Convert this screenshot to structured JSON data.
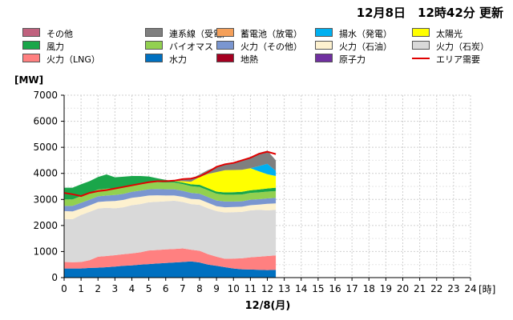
{
  "header": {
    "updated": "12月8日　12時42分 更新"
  },
  "legend": [
    {
      "key": "other",
      "label": "その他",
      "color": "#c0627e",
      "kind": "box"
    },
    {
      "key": "interconnect",
      "label": "連系線（受電）",
      "color": "#7f7f7f",
      "kind": "box"
    },
    {
      "key": "battery",
      "label": "蓄電池（放電）",
      "color": "#f5a05a",
      "kind": "box"
    },
    {
      "key": "pumped",
      "label": "揚水（発電）",
      "color": "#00b0f0",
      "kind": "box"
    },
    {
      "key": "solar",
      "label": "太陽光",
      "color": "#ffff00",
      "kind": "box"
    },
    {
      "key": "wind",
      "label": "風力",
      "color": "#1aa64a",
      "kind": "box"
    },
    {
      "key": "biomass",
      "label": "バイオマス",
      "color": "#92d050",
      "kind": "box"
    },
    {
      "key": "thermal_other",
      "label": "火力（その他）",
      "color": "#7a96d0",
      "kind": "box"
    },
    {
      "key": "oil",
      "label": "火力（石油）",
      "color": "#fdf1cf",
      "kind": "box"
    },
    {
      "key": "coal",
      "label": "火力（石炭）",
      "color": "#d9d9d9",
      "kind": "box"
    },
    {
      "key": "lng",
      "label": "火力（LNG）",
      "color": "#ff8080",
      "kind": "box"
    },
    {
      "key": "hydro",
      "label": "水力",
      "color": "#0070c0",
      "kind": "box"
    },
    {
      "key": "geothermal",
      "label": "地熱",
      "color": "#a50021",
      "kind": "box"
    },
    {
      "key": "nuclear",
      "label": "原子力",
      "color": "#7030a0",
      "kind": "box"
    },
    {
      "key": "demand",
      "label": "エリア需要",
      "color": "#e00000",
      "kind": "line"
    }
  ],
  "chart_data": {
    "type": "area",
    "title": "",
    "ylabel": "[MW]",
    "xlabel": "12/8(月)",
    "x_unit": "[時]",
    "ylim": [
      0,
      7000
    ],
    "yticks": [
      0,
      1000,
      2000,
      3000,
      4000,
      5000,
      6000,
      7000
    ],
    "xlim": [
      0,
      24
    ],
    "xticks": [
      "0",
      "1",
      "2",
      "3",
      "4",
      "5",
      "6",
      "7",
      "8",
      "9",
      "10",
      "11",
      "12",
      "13",
      "14",
      "15",
      "16",
      "17",
      "18",
      "19",
      "20",
      "21",
      "22",
      "23",
      "24"
    ],
    "x": [
      0,
      0.5,
      1,
      1.5,
      2,
      2.5,
      3,
      3.5,
      4,
      4.5,
      5,
      5.5,
      6,
      6.5,
      7,
      7.5,
      8,
      8.5,
      9,
      9.5,
      10,
      10.5,
      11,
      11.5,
      12,
      12.5
    ],
    "series": [
      {
        "key": "hydro",
        "name": "水力",
        "values": [
          350,
          350,
          350,
          370,
          380,
          400,
          420,
          450,
          470,
          500,
          520,
          540,
          560,
          580,
          600,
          620,
          580,
          500,
          450,
          400,
          350,
          320,
          310,
          300,
          290,
          300
        ]
      },
      {
        "key": "lng",
        "name": "火力（LNG）",
        "values": [
          250,
          240,
          250,
          300,
          420,
          430,
          440,
          450,
          460,
          470,
          520,
          520,
          520,
          520,
          520,
          450,
          450,
          400,
          350,
          320,
          380,
          420,
          470,
          500,
          540,
          550
        ]
      },
      {
        "key": "coal",
        "name": "火力（石炭）",
        "values": [
          1650,
          1650,
          1800,
          1850,
          1850,
          1850,
          1800,
          1800,
          1850,
          1850,
          1850,
          1850,
          1850,
          1850,
          1780,
          1750,
          1760,
          1760,
          1750,
          1780,
          1780,
          1780,
          1800,
          1800,
          1750,
          1750
        ]
      },
      {
        "key": "oil",
        "name": "火力（石油）",
        "values": [
          300,
          300,
          250,
          250,
          250,
          250,
          280,
          280,
          280,
          280,
          260,
          250,
          220,
          200,
          200,
          200,
          210,
          210,
          190,
          200,
          200,
          200,
          200,
          200,
          250,
          250
        ]
      },
      {
        "key": "thermal_other",
        "name": "火力（その他）",
        "values": [
          200,
          210,
          220,
          220,
          220,
          220,
          230,
          230,
          230,
          240,
          240,
          240,
          240,
          240,
          230,
          230,
          220,
          220,
          220,
          220,
          210,
          210,
          210,
          210,
          210,
          210
        ]
      },
      {
        "key": "biomass",
        "name": "バイオマス",
        "values": [
          250,
          250,
          260,
          260,
          260,
          260,
          260,
          260,
          260,
          260,
          260,
          260,
          260,
          260,
          260,
          260,
          260,
          260,
          260,
          260,
          260,
          260,
          260,
          260,
          260,
          260
        ]
      },
      {
        "key": "wind",
        "name": "風力",
        "values": [
          450,
          450,
          450,
          450,
          480,
          550,
          420,
          400,
          350,
          300,
          230,
          150,
          100,
          50,
          60,
          70,
          80,
          80,
          80,
          90,
          100,
          100,
          100,
          110,
          120,
          130
        ]
      },
      {
        "key": "solar",
        "name": "太陽光",
        "values": [
          0,
          0,
          0,
          0,
          0,
          0,
          0,
          0,
          0,
          0,
          0,
          0,
          0,
          0,
          50,
          100,
          300,
          550,
          750,
          850,
          850,
          850,
          850,
          700,
          550,
          450
        ]
      },
      {
        "key": "pumped",
        "name": "揚水（発電）",
        "values": [
          0,
          0,
          0,
          0,
          0,
          0,
          0,
          0,
          0,
          0,
          0,
          0,
          0,
          0,
          0,
          0,
          0,
          0,
          0,
          0,
          0,
          0,
          0,
          200,
          400,
          200
        ]
      },
      {
        "key": "interconnect",
        "name": "連系線（受電）",
        "values": [
          0,
          0,
          0,
          0,
          0,
          0,
          0,
          0,
          0,
          0,
          0,
          0,
          0,
          0,
          50,
          100,
          100,
          150,
          200,
          250,
          300,
          350,
          400,
          500,
          500,
          400
        ]
      }
    ],
    "demand": {
      "name": "エリア需要",
      "values": [
        3250,
        3200,
        3130,
        3250,
        3320,
        3360,
        3420,
        3480,
        3540,
        3600,
        3660,
        3700,
        3700,
        3720,
        3780,
        3800,
        3880,
        4050,
        4250,
        4350,
        4400,
        4500,
        4600,
        4750,
        4830,
        4740
      ]
    }
  }
}
